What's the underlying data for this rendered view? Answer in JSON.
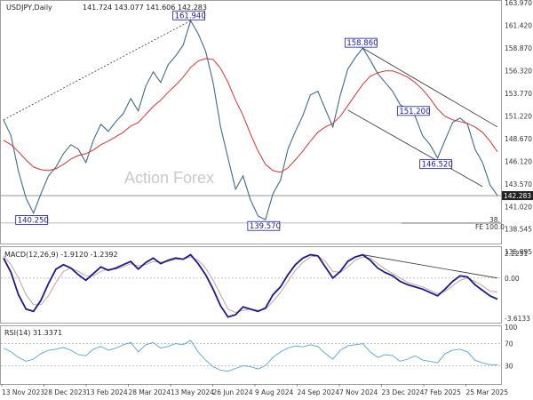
{
  "header": {
    "symbol": "USDJPY,Daily",
    "ohlc": "141.724 143.077 141.606 142.283"
  },
  "watermark": "Action Forex",
  "colors": {
    "price": "#3f6b86",
    "ma": "#e03030",
    "macd": "#1a1a8c",
    "signal": "#c9a0a0",
    "rsi": "#4da6e0",
    "trendline": "#333333",
    "grid": "#999999"
  },
  "chart_data": [
    {
      "type": "line",
      "pane": "price",
      "y_ticks": [
        "163.970",
        "161.420",
        "158.870",
        "156.320",
        "153.770",
        "151.220",
        "148.670",
        "146.120",
        "143.570",
        "141.020",
        "138.545",
        "135.995"
      ],
      "ylim": [
        135.995,
        163.97
      ],
      "last_price_label": "142.283",
      "series": [
        {
          "values": [
            150.8,
            149.0,
            145.0,
            142.0,
            140.3,
            142.5,
            144.5,
            145.5,
            147.0,
            148.0,
            147.5,
            146.0,
            148.5,
            150.3,
            149.5,
            150.6,
            151.5,
            153.2,
            151.8,
            154.6,
            156.2,
            155.0,
            157.0,
            158.0,
            159.2,
            161.94,
            160.5,
            158.5,
            155.0,
            150.0,
            146.5,
            143.0,
            144.5,
            141.8,
            140.0,
            139.57,
            142.5,
            144.0,
            147.5,
            149.5,
            151.3,
            153.6,
            154.0,
            152.0,
            150.0,
            153.6,
            156.5,
            157.8,
            158.86,
            157.5,
            156.0,
            155.0,
            154.0,
            152.5,
            152.0,
            151.2,
            149.0,
            148.0,
            146.52,
            148.5,
            150.5,
            151.0,
            150.3,
            147.5,
            146.0,
            143.5,
            142.28
          ]
        },
        {
          "values": [
            148.5,
            148.0,
            147.2,
            146.3,
            145.5,
            145.2,
            145.1,
            145.3,
            145.8,
            146.4,
            146.8,
            147.0,
            147.4,
            148.0,
            148.4,
            148.9,
            149.4,
            150.1,
            150.5,
            151.4,
            152.3,
            153.0,
            153.9,
            154.7,
            155.6,
            156.7,
            157.4,
            157.7,
            157.6,
            156.6,
            155.0,
            153.0,
            151.3,
            149.2,
            147.3,
            145.8,
            145.1,
            144.9,
            145.4,
            146.3,
            147.3,
            148.4,
            149.4,
            150.0,
            150.4,
            151.2,
            152.4,
            153.6,
            154.8,
            155.7,
            156.1,
            156.3,
            156.3,
            156.0,
            155.6,
            155.0,
            154.2,
            153.2,
            152.0,
            151.2,
            150.8,
            150.6,
            150.4,
            150.0,
            149.4,
            148.4,
            147.2
          ]
        }
      ],
      "annotations": [
        {
          "text": "161.940",
          "index": 25,
          "value": 161.94
        },
        {
          "text": "140.250",
          "index": 4,
          "value": 140.25
        },
        {
          "text": "139.570",
          "index": 35,
          "value": 139.57
        },
        {
          "text": "158.860",
          "index": 48,
          "value": 158.86
        },
        {
          "text": "151.200",
          "index": 55,
          "value": 151.2
        },
        {
          "text": "146.520",
          "index": 58,
          "value": 146.52
        }
      ],
      "fib_label": "FE 100.0",
      "fib_small": "38.",
      "fib_value": 139.2,
      "horizontal_level": 142.283,
      "trendlines": [
        {
          "style": "dashed",
          "from": [
            0,
            150.8
          ],
          "to": [
            25,
            161.94
          ]
        },
        {
          "style": "solid",
          "from": [
            48,
            158.86
          ],
          "to": [
            66,
            150.0
          ]
        },
        {
          "style": "solid",
          "from": [
            46,
            151.9
          ],
          "to": [
            64,
            143.3
          ]
        }
      ]
    },
    {
      "type": "line",
      "pane": "macd",
      "label": "MACD(12,26,9) -1.9120 -1.2392",
      "y_ticks": [
        "2.2251",
        "0.00",
        "-3.6133"
      ],
      "ylim": [
        -3.6133,
        2.2251
      ],
      "series": [
        {
          "values": [
            1.8,
            0.5,
            -1.5,
            -2.8,
            -3.0,
            -2.0,
            -0.5,
            0.8,
            1.2,
            0.9,
            0.3,
            -0.2,
            0.4,
            1.0,
            0.7,
            0.9,
            1.2,
            1.5,
            0.8,
            1.4,
            1.8,
            1.3,
            1.6,
            1.8,
            1.7,
            2.1,
            1.3,
            0.3,
            -1.0,
            -2.5,
            -3.5,
            -3.3,
            -2.6,
            -2.8,
            -3.0,
            -2.7,
            -1.5,
            -0.8,
            0.3,
            1.2,
            1.8,
            2.1,
            2.0,
            1.0,
            0.0,
            0.6,
            1.5,
            1.9,
            2.1,
            1.6,
            0.9,
            0.5,
            0.2,
            -0.3,
            -0.6,
            -0.8,
            -1.0,
            -1.3,
            -1.6,
            -1.0,
            -0.3,
            0.2,
            0.1,
            -0.6,
            -1.1,
            -1.6,
            -1.9
          ]
        },
        {
          "values": [
            2.0,
            1.2,
            0.0,
            -1.5,
            -2.4,
            -2.4,
            -1.6,
            -0.4,
            0.6,
            0.9,
            0.6,
            0.2,
            0.2,
            0.6,
            0.8,
            0.8,
            1.0,
            1.3,
            1.1,
            1.2,
            1.5,
            1.4,
            1.5,
            1.7,
            1.7,
            1.9,
            1.6,
            0.9,
            -0.2,
            -1.5,
            -2.8,
            -3.1,
            -2.9,
            -2.8,
            -2.9,
            -2.8,
            -2.1,
            -1.3,
            -0.3,
            0.7,
            1.4,
            1.9,
            2.0,
            1.5,
            0.6,
            0.5,
            1.0,
            1.6,
            1.9,
            1.8,
            1.3,
            0.8,
            0.4,
            0.0,
            -0.4,
            -0.6,
            -0.8,
            -1.1,
            -1.4,
            -1.2,
            -0.7,
            -0.2,
            0.0,
            -0.3,
            -0.7,
            -1.2,
            -1.24
          ]
        }
      ],
      "trendline": {
        "from": [
          48,
          2.1
        ],
        "to": [
          66,
          0.0
        ]
      }
    },
    {
      "type": "line",
      "pane": "rsi",
      "label": "RSI(14) 31.3371",
      "y_ticks": [
        "100",
        "70",
        "30",
        "0"
      ],
      "ylim": [
        0,
        100
      ],
      "series": [
        {
          "values": [
            62,
            55,
            45,
            38,
            42,
            52,
            58,
            60,
            63,
            58,
            50,
            48,
            60,
            65,
            58,
            62,
            68,
            72,
            55,
            68,
            72,
            62,
            65,
            70,
            68,
            76,
            55,
            40,
            28,
            22,
            20,
            25,
            30,
            28,
            24,
            30,
            45,
            55,
            62,
            66,
            64,
            68,
            65,
            52,
            42,
            58,
            66,
            68,
            70,
            55,
            45,
            50,
            48,
            38,
            42,
            48,
            40,
            38,
            35,
            52,
            58,
            60,
            55,
            40,
            35,
            32,
            31.3
          ]
        }
      ]
    }
  ],
  "x_axis_labels": [
    "13 Nov 2023",
    "28 Dec 2023",
    "13 Feb 2024",
    "28 Mar 2024",
    "13 May 2024",
    "26 Jun 2024",
    "9 Aug 2024",
    "24 Sep 2024",
    "7 Nov 2024",
    "23 Dec 2024",
    "7 Feb 2025",
    "25 Mar 2025"
  ]
}
